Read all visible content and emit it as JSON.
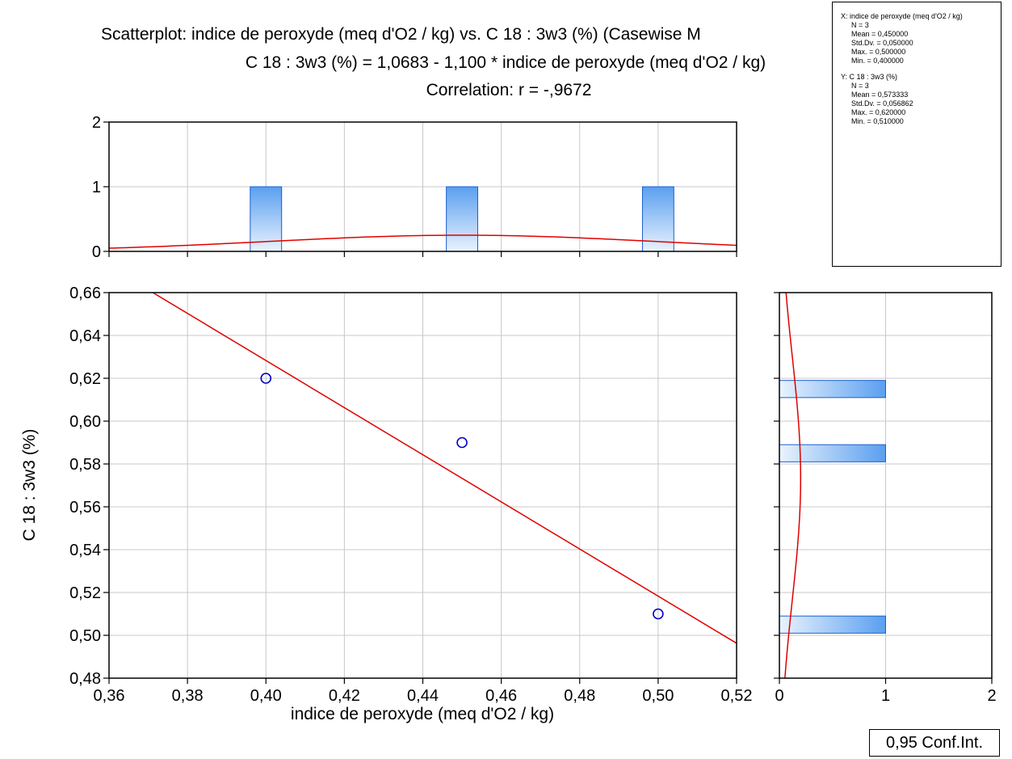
{
  "title_lines": [
    "Scatterplot: indice de peroxyde (meq d'O2 / kg) vs. C 18 : 3w3 (%) (Casewise M",
    "C 18 : 3w3 (%) = 1,0683 - 1,100  * indice de peroxyde (meq d'O2 / kg)",
    "Correlation: r = -,9672"
  ],
  "confidence_label": "0,95 Conf.Int.",
  "stats_box": {
    "x_header": "X:  indice de peroxyde (meq d'O2 / kg)",
    "x_items": [
      "N = 3",
      "Mean = 0,450000",
      "Std.Dv. = 0,050000",
      "Max. = 0,500000",
      "Min. = 0,400000"
    ],
    "y_header": "Y:  C 18 : 3w3 (%)",
    "y_items": [
      "N = 3",
      "Mean = 0,573333",
      "Std.Dv. = 0,056862",
      "Max. = 0,620000",
      "Min. = 0,510000"
    ]
  },
  "colors": {
    "points": "#0000cc",
    "fit_line": "#e00000",
    "bar_edge": "#1a5fd0",
    "bar_fill_dark": "#5a9ff0",
    "bar_fill_light": "#eaf3fd"
  },
  "chart_data": [
    {
      "type": "scatter",
      "xlabel": "indice de peroxyde (meq d'O2 / kg)",
      "ylabel": "C 18 : 3w3 (%)",
      "xlim": [
        0.36,
        0.52
      ],
      "ylim": [
        0.48,
        0.66
      ],
      "xticks": [
        "0,36",
        "0,38",
        "0,40",
        "0,42",
        "0,44",
        "0,46",
        "0,48",
        "0,50",
        "0,52"
      ],
      "yticks": [
        "0,48",
        "0,50",
        "0,52",
        "0,54",
        "0,56",
        "0,58",
        "0,60",
        "0,62",
        "0,64",
        "0,66"
      ],
      "points": [
        {
          "x": 0.4,
          "y": 0.62
        },
        {
          "x": 0.45,
          "y": 0.59
        },
        {
          "x": 0.5,
          "y": 0.51
        }
      ],
      "fit": {
        "intercept": 1.0683,
        "slope": -1.1
      },
      "grid": true
    },
    {
      "type": "bar",
      "orientation": "vertical",
      "role": "x-marginal-histogram",
      "ylim": [
        0,
        2
      ],
      "yticks": [
        "0",
        "1",
        "2"
      ],
      "bars": [
        {
          "center": 0.4,
          "width": 0.008,
          "count": 1
        },
        {
          "center": 0.45,
          "width": 0.008,
          "count": 1
        },
        {
          "center": 0.5,
          "width": 0.008,
          "count": 1
        }
      ],
      "normal_curve": {
        "mean": 0.45,
        "sd": 0.05,
        "peak": 0.25
      },
      "grid": true
    },
    {
      "type": "bar",
      "orientation": "horizontal",
      "role": "y-marginal-histogram",
      "xlim": [
        0,
        2
      ],
      "xticks": [
        "0",
        "1",
        "2"
      ],
      "bars": [
        {
          "center": 0.615,
          "width": 0.008,
          "count": 1
        },
        {
          "center": 0.585,
          "width": 0.008,
          "count": 1
        },
        {
          "center": 0.505,
          "width": 0.008,
          "count": 1
        }
      ],
      "normal_curve": {
        "mean": 0.573333,
        "sd": 0.056862,
        "peak": 0.2
      },
      "grid": true
    }
  ]
}
